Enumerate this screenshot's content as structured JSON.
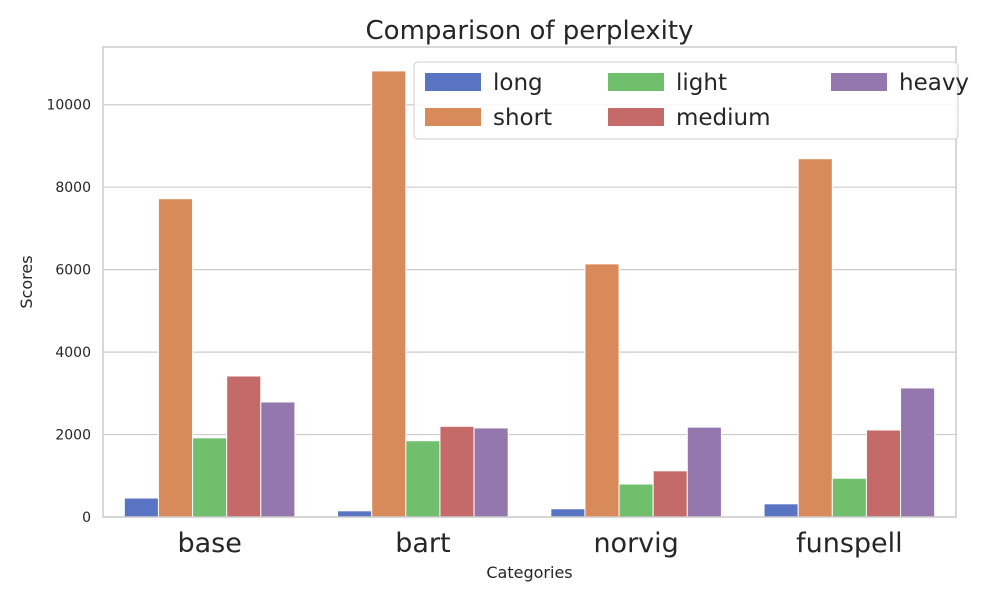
{
  "chart_data": {
    "type": "bar",
    "title": "Comparison of perplexity",
    "xlabel": "Categories",
    "ylabel": "Scores",
    "categories": [
      "base",
      "bart",
      "norvig",
      "funspell"
    ],
    "ylim": [
      0,
      11400
    ],
    "yticks": [
      0,
      2000,
      4000,
      6000,
      8000,
      10000
    ],
    "grid": "horizontal",
    "legend_position": "top-right",
    "legend_columns": 3,
    "series": [
      {
        "name": "long",
        "color": "#5874c2",
        "values": [
          460,
          150,
          200,
          320
        ]
      },
      {
        "name": "short",
        "color": "#d98a5b",
        "values": [
          7720,
          10820,
          6140,
          8690
        ]
      },
      {
        "name": "light",
        "color": "#70bf6c",
        "values": [
          1920,
          1850,
          800,
          940
        ]
      },
      {
        "name": "medium",
        "color": "#c46a69",
        "values": [
          3420,
          2200,
          1120,
          2110
        ]
      },
      {
        "name": "heavy",
        "color": "#9477ad",
        "values": [
          2790,
          2160,
          2180,
          3130
        ]
      }
    ]
  }
}
